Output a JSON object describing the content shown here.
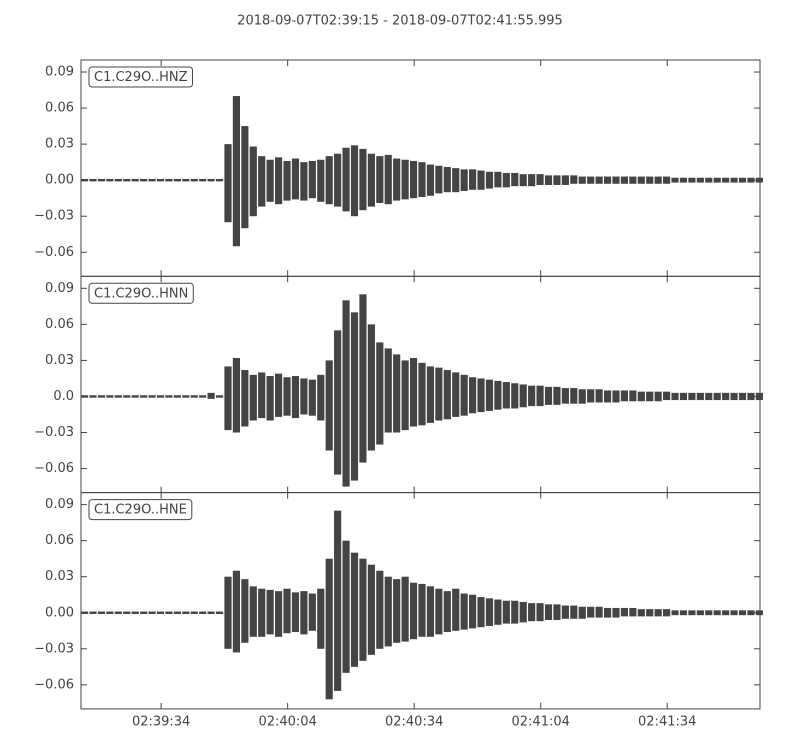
{
  "title": "2018-09-07T02:39:15  -  2018-09-07T02:41:55.995",
  "chart_data": [
    {
      "type": "envelope",
      "label": "C1.C29O..HNZ",
      "color": "#444444",
      "x": [
        0,
        2,
        4,
        6,
        8,
        10,
        12,
        14,
        16,
        18,
        20,
        22,
        24,
        26,
        28,
        30,
        32,
        34,
        36,
        38,
        40,
        42,
        44,
        46,
        48,
        50,
        52,
        54,
        56,
        58,
        60,
        62,
        64,
        66,
        68,
        70,
        72,
        74,
        76,
        78,
        80,
        82,
        84,
        86,
        88,
        90,
        92,
        94,
        96,
        98,
        100,
        102,
        104,
        106,
        108,
        110,
        112,
        114,
        116,
        118,
        120,
        122,
        124,
        126,
        128,
        130,
        132,
        134,
        136,
        138,
        140,
        142,
        144,
        146,
        148,
        150,
        152,
        154,
        156,
        158,
        160
      ],
      "series": [
        {
          "values": [
            0.001,
            0.001,
            0.001,
            0.001,
            0.001,
            0.001,
            0.001,
            0.001,
            0.001,
            0.001,
            0.001,
            0.001,
            0.001,
            0.001,
            0.001,
            0.001,
            0.001,
            0.03,
            0.07,
            0.045,
            0.028,
            0.02,
            0.017,
            0.019,
            0.016,
            0.018,
            0.015,
            0.016,
            0.017,
            0.02,
            0.022,
            0.027,
            0.029,
            0.026,
            0.022,
            0.02,
            0.021,
            0.018,
            0.017,
            0.016,
            0.015,
            0.013,
            0.012,
            0.011,
            0.01,
            0.009,
            0.009,
            0.008,
            0.007,
            0.007,
            0.006,
            0.006,
            0.005,
            0.005,
            0.005,
            0.004,
            0.004,
            0.004,
            0.004,
            0.003,
            0.003,
            0.003,
            0.003,
            0.003,
            0.003,
            0.003,
            0.003,
            0.003,
            0.003,
            0.003,
            0.002,
            0.002,
            0.002,
            0.002,
            0.002,
            0.002,
            0.002,
            0.002,
            0.002,
            0.002,
            0.002
          ]
        },
        {
          "values": [
            -0.001,
            -0.001,
            -0.001,
            -0.001,
            -0.001,
            -0.001,
            -0.001,
            -0.001,
            -0.001,
            -0.001,
            -0.001,
            -0.001,
            -0.001,
            -0.001,
            -0.001,
            -0.001,
            -0.001,
            -0.035,
            -0.055,
            -0.04,
            -0.03,
            -0.022,
            -0.018,
            -0.02,
            -0.017,
            -0.016,
            -0.017,
            -0.015,
            -0.018,
            -0.02,
            -0.022,
            -0.026,
            -0.03,
            -0.025,
            -0.022,
            -0.019,
            -0.02,
            -0.017,
            -0.016,
            -0.015,
            -0.014,
            -0.013,
            -0.011,
            -0.01,
            -0.01,
            -0.009,
            -0.008,
            -0.008,
            -0.007,
            -0.006,
            -0.006,
            -0.005,
            -0.005,
            -0.005,
            -0.004,
            -0.004,
            -0.004,
            -0.004,
            -0.003,
            -0.003,
            -0.003,
            -0.003,
            -0.003,
            -0.003,
            -0.003,
            -0.003,
            -0.003,
            -0.003,
            -0.003,
            -0.003,
            -0.002,
            -0.002,
            -0.002,
            -0.002,
            -0.002,
            -0.002,
            -0.002,
            -0.002,
            -0.002,
            -0.002,
            -0.002
          ]
        }
      ],
      "xlim": [
        0,
        160.995
      ],
      "ylim": [
        -0.08,
        0.1
      ],
      "yticks": [
        {
          "value": -0.06,
          "label": "−0.06"
        },
        {
          "value": -0.03,
          "label": "−0.03"
        },
        {
          "value": 0,
          "label": "0.00"
        },
        {
          "value": 0.03,
          "label": "0.03"
        },
        {
          "value": 0.06,
          "label": "0.06"
        },
        {
          "value": 0.09,
          "label": "0.09"
        }
      ]
    },
    {
      "type": "envelope",
      "label": "C1.C29O..HNN",
      "color": "#444444",
      "x": [
        0,
        2,
        4,
        6,
        8,
        10,
        12,
        14,
        16,
        18,
        20,
        22,
        24,
        26,
        28,
        30,
        32,
        34,
        36,
        38,
        40,
        42,
        44,
        46,
        48,
        50,
        52,
        54,
        56,
        58,
        60,
        62,
        64,
        66,
        68,
        70,
        72,
        74,
        76,
        78,
        80,
        82,
        84,
        86,
        88,
        90,
        92,
        94,
        96,
        98,
        100,
        102,
        104,
        106,
        108,
        110,
        112,
        114,
        116,
        118,
        120,
        122,
        124,
        126,
        128,
        130,
        132,
        134,
        136,
        138,
        140,
        142,
        144,
        146,
        148,
        150,
        152,
        154,
        156,
        158,
        160
      ],
      "series": [
        {
          "values": [
            0.001,
            0.001,
            0.001,
            0.001,
            0.001,
            0.001,
            0.001,
            0.001,
            0.001,
            0.001,
            0.001,
            0.001,
            0.001,
            0.001,
            0.001,
            0.003,
            0.001,
            0.025,
            0.032,
            0.022,
            0.018,
            0.02,
            0.017,
            0.019,
            0.016,
            0.017,
            0.015,
            0.014,
            0.018,
            0.03,
            0.055,
            0.08,
            0.07,
            0.085,
            0.06,
            0.045,
            0.04,
            0.035,
            0.03,
            0.032,
            0.028,
            0.025,
            0.024,
            0.022,
            0.02,
            0.018,
            0.016,
            0.015,
            0.014,
            0.013,
            0.012,
            0.011,
            0.01,
            0.009,
            0.009,
            0.008,
            0.008,
            0.007,
            0.007,
            0.006,
            0.006,
            0.006,
            0.005,
            0.005,
            0.005,
            0.005,
            0.004,
            0.004,
            0.004,
            0.004,
            0.003,
            0.003,
            0.003,
            0.003,
            0.003,
            0.003,
            0.003,
            0.003,
            0.003,
            0.003,
            0.003
          ]
        },
        {
          "values": [
            -0.001,
            -0.001,
            -0.001,
            -0.001,
            -0.001,
            -0.001,
            -0.001,
            -0.001,
            -0.001,
            -0.001,
            -0.001,
            -0.001,
            -0.001,
            -0.001,
            -0.001,
            -0.002,
            -0.001,
            -0.028,
            -0.03,
            -0.025,
            -0.02,
            -0.018,
            -0.02,
            -0.017,
            -0.016,
            -0.018,
            -0.015,
            -0.016,
            -0.02,
            -0.045,
            -0.065,
            -0.075,
            -0.07,
            -0.055,
            -0.045,
            -0.04,
            -0.03,
            -0.03,
            -0.028,
            -0.025,
            -0.024,
            -0.022,
            -0.02,
            -0.019,
            -0.017,
            -0.016,
            -0.014,
            -0.013,
            -0.012,
            -0.011,
            -0.01,
            -0.01,
            -0.009,
            -0.008,
            -0.008,
            -0.007,
            -0.007,
            -0.006,
            -0.006,
            -0.006,
            -0.005,
            -0.005,
            -0.005,
            -0.005,
            -0.004,
            -0.004,
            -0.004,
            -0.004,
            -0.004,
            -0.003,
            -0.003,
            -0.003,
            -0.003,
            -0.003,
            -0.003,
            -0.003,
            -0.003,
            -0.003,
            -0.003,
            -0.003,
            -0.003
          ]
        }
      ],
      "xlim": [
        0,
        160.995
      ],
      "ylim": [
        -0.08,
        0.1
      ],
      "yticks": [
        {
          "value": -0.06,
          "label": "−0.06"
        },
        {
          "value": -0.03,
          "label": "−0.03"
        },
        {
          "value": 0,
          "label": "0.0"
        },
        {
          "value": 0.03,
          "label": "0.03"
        },
        {
          "value": 0.06,
          "label": "0.06"
        },
        {
          "value": 0.09,
          "label": "0.09"
        }
      ]
    },
    {
      "type": "envelope",
      "label": "C1.C29O..HNE",
      "color": "#444444",
      "x": [
        0,
        2,
        4,
        6,
        8,
        10,
        12,
        14,
        16,
        18,
        20,
        22,
        24,
        26,
        28,
        30,
        32,
        34,
        36,
        38,
        40,
        42,
        44,
        46,
        48,
        50,
        52,
        54,
        56,
        58,
        60,
        62,
        64,
        66,
        68,
        70,
        72,
        74,
        76,
        78,
        80,
        82,
        84,
        86,
        88,
        90,
        92,
        94,
        96,
        98,
        100,
        102,
        104,
        106,
        108,
        110,
        112,
        114,
        116,
        118,
        120,
        122,
        124,
        126,
        128,
        130,
        132,
        134,
        136,
        138,
        140,
        142,
        144,
        146,
        148,
        150,
        152,
        154,
        156,
        158,
        160
      ],
      "series": [
        {
          "values": [
            0.001,
            0.001,
            0.001,
            0.001,
            0.001,
            0.001,
            0.001,
            0.001,
            0.001,
            0.001,
            0.001,
            0.001,
            0.001,
            0.001,
            0.001,
            0.001,
            0.001,
            0.03,
            0.035,
            0.028,
            0.022,
            0.02,
            0.019,
            0.018,
            0.02,
            0.017,
            0.018,
            0.016,
            0.02,
            0.045,
            0.085,
            0.06,
            0.05,
            0.045,
            0.04,
            0.035,
            0.03,
            0.028,
            0.03,
            0.025,
            0.024,
            0.022,
            0.02,
            0.018,
            0.02,
            0.016,
            0.015,
            0.013,
            0.012,
            0.011,
            0.01,
            0.01,
            0.009,
            0.008,
            0.008,
            0.007,
            0.007,
            0.006,
            0.006,
            0.005,
            0.005,
            0.005,
            0.004,
            0.004,
            0.004,
            0.004,
            0.003,
            0.003,
            0.003,
            0.003,
            0.002,
            0.002,
            0.002,
            0.002,
            0.002,
            0.002,
            0.002,
            0.002,
            0.002,
            0.002,
            0.002
          ]
        },
        {
          "values": [
            -0.001,
            -0.001,
            -0.001,
            -0.001,
            -0.001,
            -0.001,
            -0.001,
            -0.001,
            -0.001,
            -0.001,
            -0.001,
            -0.001,
            -0.001,
            -0.001,
            -0.001,
            -0.001,
            -0.001,
            -0.03,
            -0.033,
            -0.025,
            -0.02,
            -0.02,
            -0.018,
            -0.02,
            -0.017,
            -0.016,
            -0.018,
            -0.015,
            -0.03,
            -0.072,
            -0.065,
            -0.05,
            -0.045,
            -0.04,
            -0.035,
            -0.03,
            -0.028,
            -0.025,
            -0.024,
            -0.022,
            -0.02,
            -0.02,
            -0.018,
            -0.016,
            -0.015,
            -0.014,
            -0.013,
            -0.012,
            -0.011,
            -0.01,
            -0.009,
            -0.009,
            -0.008,
            -0.007,
            -0.007,
            -0.006,
            -0.006,
            -0.005,
            -0.005,
            -0.005,
            -0.004,
            -0.004,
            -0.004,
            -0.004,
            -0.003,
            -0.003,
            -0.003,
            -0.003,
            -0.003,
            -0.003,
            -0.002,
            -0.002,
            -0.002,
            -0.002,
            -0.002,
            -0.002,
            -0.002,
            -0.002,
            -0.002,
            -0.002,
            -0.002
          ]
        }
      ],
      "xlim": [
        0,
        160.995
      ],
      "ylim": [
        -0.08,
        0.1
      ],
      "yticks": [
        {
          "value": -0.06,
          "label": "−0.06"
        },
        {
          "value": -0.03,
          "label": "−0.03"
        },
        {
          "value": 0,
          "label": "0.00"
        },
        {
          "value": 0.03,
          "label": "0.03"
        },
        {
          "value": 0.06,
          "label": "0.06"
        },
        {
          "value": 0.09,
          "label": "0.09"
        }
      ],
      "xticks": [
        {
          "value": 19,
          "label": "02:39:34"
        },
        {
          "value": 49,
          "label": "02:40:04"
        },
        {
          "value": 79,
          "label": "02:40:34"
        },
        {
          "value": 109,
          "label": "02:41:04"
        },
        {
          "value": 139,
          "label": "02:41:34"
        }
      ]
    }
  ]
}
